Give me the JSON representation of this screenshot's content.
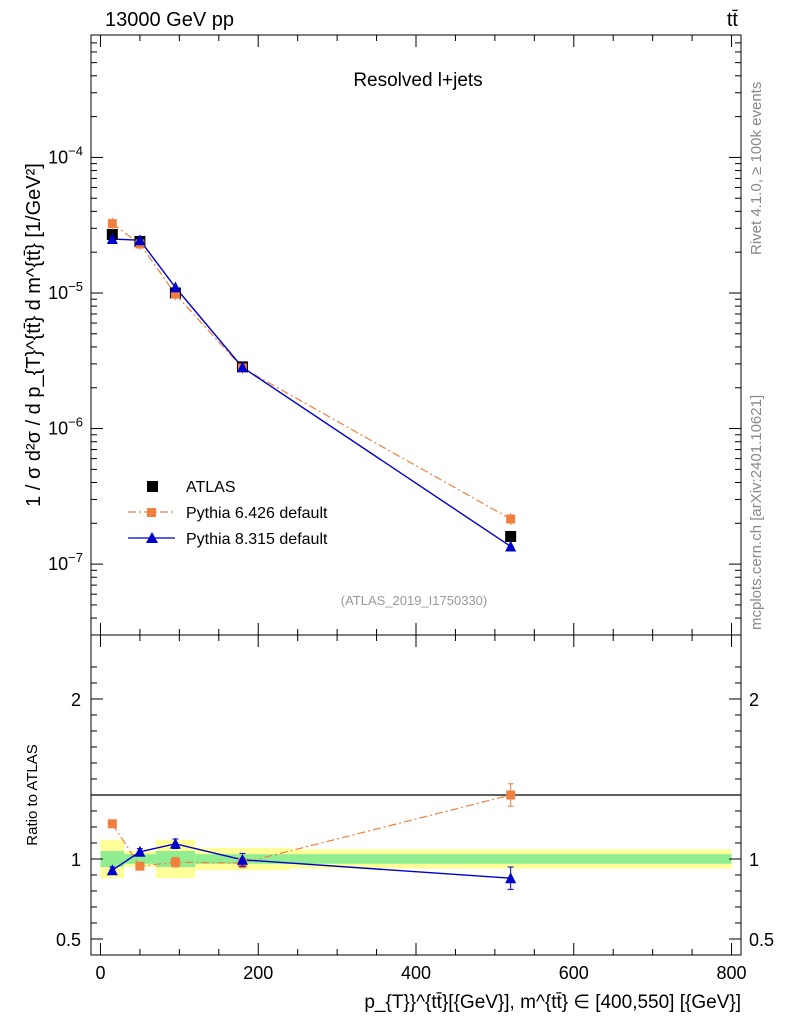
{
  "header": {
    "energy_label": "13000 GeV pp",
    "process_label": "tt̄"
  },
  "side_labels": {
    "rivet": "Rivet 4.1.0, ≥ 100k events",
    "mcplots": "mcplots.cern.ch [arXiv:2401.10621]"
  },
  "chart_data": [
    {
      "type": "scatter",
      "title": "Resolved l+jets",
      "analysis_tag": "(ATLAS_2019_I1750330)",
      "ylabel": "1 / σ d²σ / d p_{T}^{tt̄} d m^{tt̄} [1/GeV²]",
      "yscale": "log",
      "ylim": [
        3e-08,
        0.0008
      ],
      "xlim": [
        -12,
        812
      ],
      "y_tick_labels": [
        "10^-7",
        "10^-6",
        "10^-5",
        "10^-4"
      ],
      "x": [
        15,
        50,
        95,
        180,
        520
      ],
      "series": [
        {
          "name": "ATLAS",
          "color": "#000000",
          "marker": "square",
          "values": [
            2.7e-05,
            2.4e-05,
            1e-05,
            2.85e-06,
            1.6e-07
          ]
        },
        {
          "name": "Pythia 6.426 default",
          "color": "#f08040",
          "marker": "square",
          "line": "dashdot",
          "values": [
            3.25e-05,
            2.3e-05,
            9.8e-06,
            2.8e-06,
            2.15e-07
          ]
        },
        {
          "name": "Pythia 8.315 default",
          "color": "#0000cc",
          "marker": "triangle",
          "line": "solid",
          "values": [
            2.5e-05,
            2.45e-05,
            1.1e-05,
            2.83e-06,
            1.35e-07
          ]
        }
      ],
      "legend": "middle-left"
    },
    {
      "type": "scatter",
      "ylabel": "Ratio to ATLAS",
      "ylim": [
        0.4,
        2.4
      ],
      "y_tick_labels": [
        "0.5",
        "1",
        "2"
      ],
      "x_tick_labels": [
        "0",
        "200",
        "400",
        "600",
        "800"
      ],
      "xlabel": "p_{T}}^{tt̄}[{GeV}], m^{tt̄} ∈ [400,550] [{GeV}]",
      "x": [
        15,
        50,
        95,
        180,
        520
      ],
      "series": [
        {
          "name": "Pythia 6.426 default",
          "color": "#f08040",
          "values": [
            1.22,
            0.955,
            0.98,
            0.975,
            1.4
          ],
          "errors": [
            0.02,
            0.015,
            0.03,
            0.03,
            0.07
          ]
        },
        {
          "name": "Pythia 8.315 default",
          "color": "#0000cc",
          "values": [
            0.93,
            1.045,
            1.095,
            0.995,
            0.88
          ],
          "errors": [
            0.02,
            0.02,
            0.03,
            0.04,
            0.07
          ]
        }
      ],
      "bands": {
        "green_color": "#90ee90",
        "yellow_color": "#ffff99",
        "bins": [
          {
            "lo": 0,
            "hi": 30,
            "inner": 0.05,
            "outer": 0.12
          },
          {
            "lo": 30,
            "hi": 70,
            "inner": 0.03,
            "outer": 0.05
          },
          {
            "lo": 70,
            "hi": 120,
            "inner": 0.05,
            "outer": 0.12
          },
          {
            "lo": 120,
            "hi": 240,
            "inner": 0.03,
            "outer": 0.07
          },
          {
            "lo": 240,
            "hi": 800,
            "inner": 0.03,
            "outer": 0.06
          }
        ]
      }
    }
  ]
}
